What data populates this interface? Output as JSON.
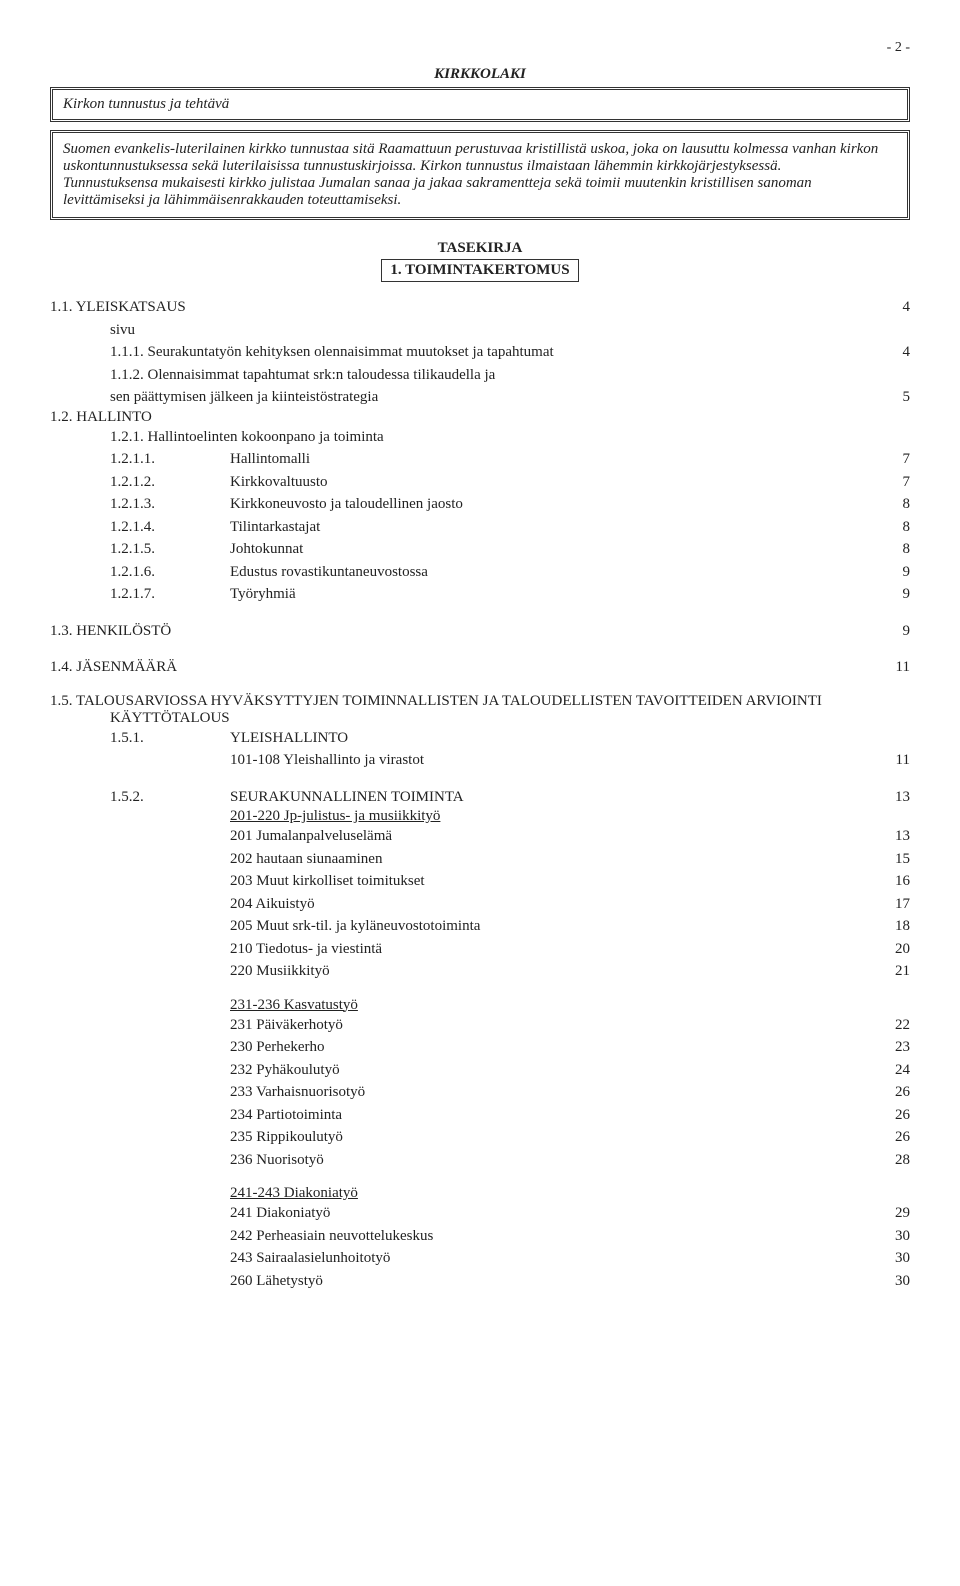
{
  "pageNumber": "- 2 -",
  "kirkkolaki": "KIRKKOLAKI",
  "box1": "Kirkon tunnustus ja tehtävä",
  "box2": "Suomen evankelis-luterilainen kirkko tunnustaa sitä Raamattuun perustuvaa kristillistä uskoa, joka on lausuttu kolmessa vanhan kirkon uskontunnustuksessa sekä luterilaisissa tunnustuskirjoissa. Kirkon tunnustus ilmaistaan lähemmin kirkkojärjestyksessä.\nTunnustuksensa mukaisesti kirkko julistaa Jumalan sanaa ja jakaa sakramentteja sekä toimii muutenkin kristillisen sanoman levittämiseksi ja lähimmäisenrakkauden toteuttamiseksi.",
  "tasekirja": "TASEKIRJA",
  "toimintakertomus": "1. TOIMINTAKERTOMUS",
  "yleiskatsaus": {
    "title": "1.1. YLEISKATSAUS",
    "page": "4"
  },
  "sivu": "sivu",
  "r111": {
    "label": "1.1.1. Seurakuntatyön kehityksen olennaisimmat muutokset ja tapahtumat",
    "page": "4"
  },
  "r112a": "1.1.2. Olennaisimmat tapahtumat srk:n taloudessa tilikaudella ja",
  "r112b": {
    "label": "sen päättymisen jälkeen ja kiinteistöstrategia",
    "page": "5"
  },
  "hallinto": "1.2. HALLINTO",
  "r121": "1.2.1. Hallintoelinten kokoonpano ja toiminta",
  "r1211": {
    "num": "1.2.1.1.",
    "label": "Hallintomalli",
    "page": "7"
  },
  "r1212": {
    "num": "1.2.1.2.",
    "label": "Kirkkovaltuusto",
    "page": "7"
  },
  "r1213": {
    "num": "1.2.1.3.",
    "label": "Kirkkoneuvosto ja taloudellinen jaosto",
    "page": "8"
  },
  "r1214": {
    "num": "1.2.1.4.",
    "label": "Tilintarkastajat",
    "page": "8"
  },
  "r1215": {
    "num": "1.2.1.5.",
    "label": "Johtokunnat",
    "page": "8"
  },
  "r1216": {
    "num": "1.2.1.6.",
    "label": "Edustus  rovastikuntaneuvostossa",
    "page": "9"
  },
  "r1217": {
    "num": "1.2.1.7.",
    "label": "Työryhmiä",
    "page": "9"
  },
  "henkilosto": {
    "title": "1.3. HENKILÖSTÖ",
    "page": "9"
  },
  "jasenmaara": {
    "title": "1.4. JÄSENMÄÄRÄ",
    "page": "11"
  },
  "s15title": "1.5. TALOUSARVIOSSA HYVÄKSYTTYJEN TOIMINNALLISTEN JA TALOUDELLISTEN TAVOITTEIDEN ARVIOINTI",
  "kayttotalous": "KÄYTTÖTALOUS",
  "r151num": "1.5.1.",
  "r151label": "YLEISHALLINTO",
  "r151sub": {
    "label": "101-108 Yleishallinto ja virastot",
    "page": "11"
  },
  "r152": {
    "num": "1.5.2.",
    "label": "SEURAKUNNALLINEN TOIMINTA",
    "page": "13"
  },
  "g152a_head": "201-220 Jp-julistus- ja musiikkityö",
  "g152a": [
    {
      "label": "201 Jumalanpalveluselämä",
      "page": "13"
    },
    {
      "label": "202 hautaan siunaaminen",
      "page": "15"
    },
    {
      "label": "203 Muut kirkolliset toimitukset",
      "page": "16"
    },
    {
      "label": "204 Aikuistyö",
      "page": "17"
    },
    {
      "label": "205 Muut srk-til. ja kyläneuvostotoiminta",
      "page": "18"
    },
    {
      "label": "210 Tiedotus- ja viestintä",
      "page": "20"
    },
    {
      "label": "220 Musiikkityö",
      "page": "21"
    }
  ],
  "g152b_head": "231-236 Kasvatustyö",
  "g152b": [
    {
      "label": "231 Päiväkerhotyö",
      "page": "22"
    },
    {
      "label": "230 Perhekerho",
      "page": "23"
    },
    {
      "label": "232 Pyhäkoulutyö",
      "page": "24"
    },
    {
      "label": "233 Varhaisnuorisotyö",
      "page": "26"
    },
    {
      "label": "234 Partiotoiminta",
      "page": "26"
    },
    {
      "label": "235 Rippikoulutyö",
      "page": "26"
    },
    {
      "label": "236 Nuorisotyö",
      "page": "28"
    }
  ],
  "g152c_head": "241-243 Diakoniatyö",
  "g152c": [
    {
      "label": "241 Diakoniatyö",
      "page": "29"
    },
    {
      "label": "242 Perheasiain neuvottelukeskus",
      "page": "30"
    },
    {
      "label": "243 Sairaalasielunhoitotyö",
      "page": "30"
    },
    {
      "label": "260 Lähetystyö",
      "page": "30"
    }
  ]
}
